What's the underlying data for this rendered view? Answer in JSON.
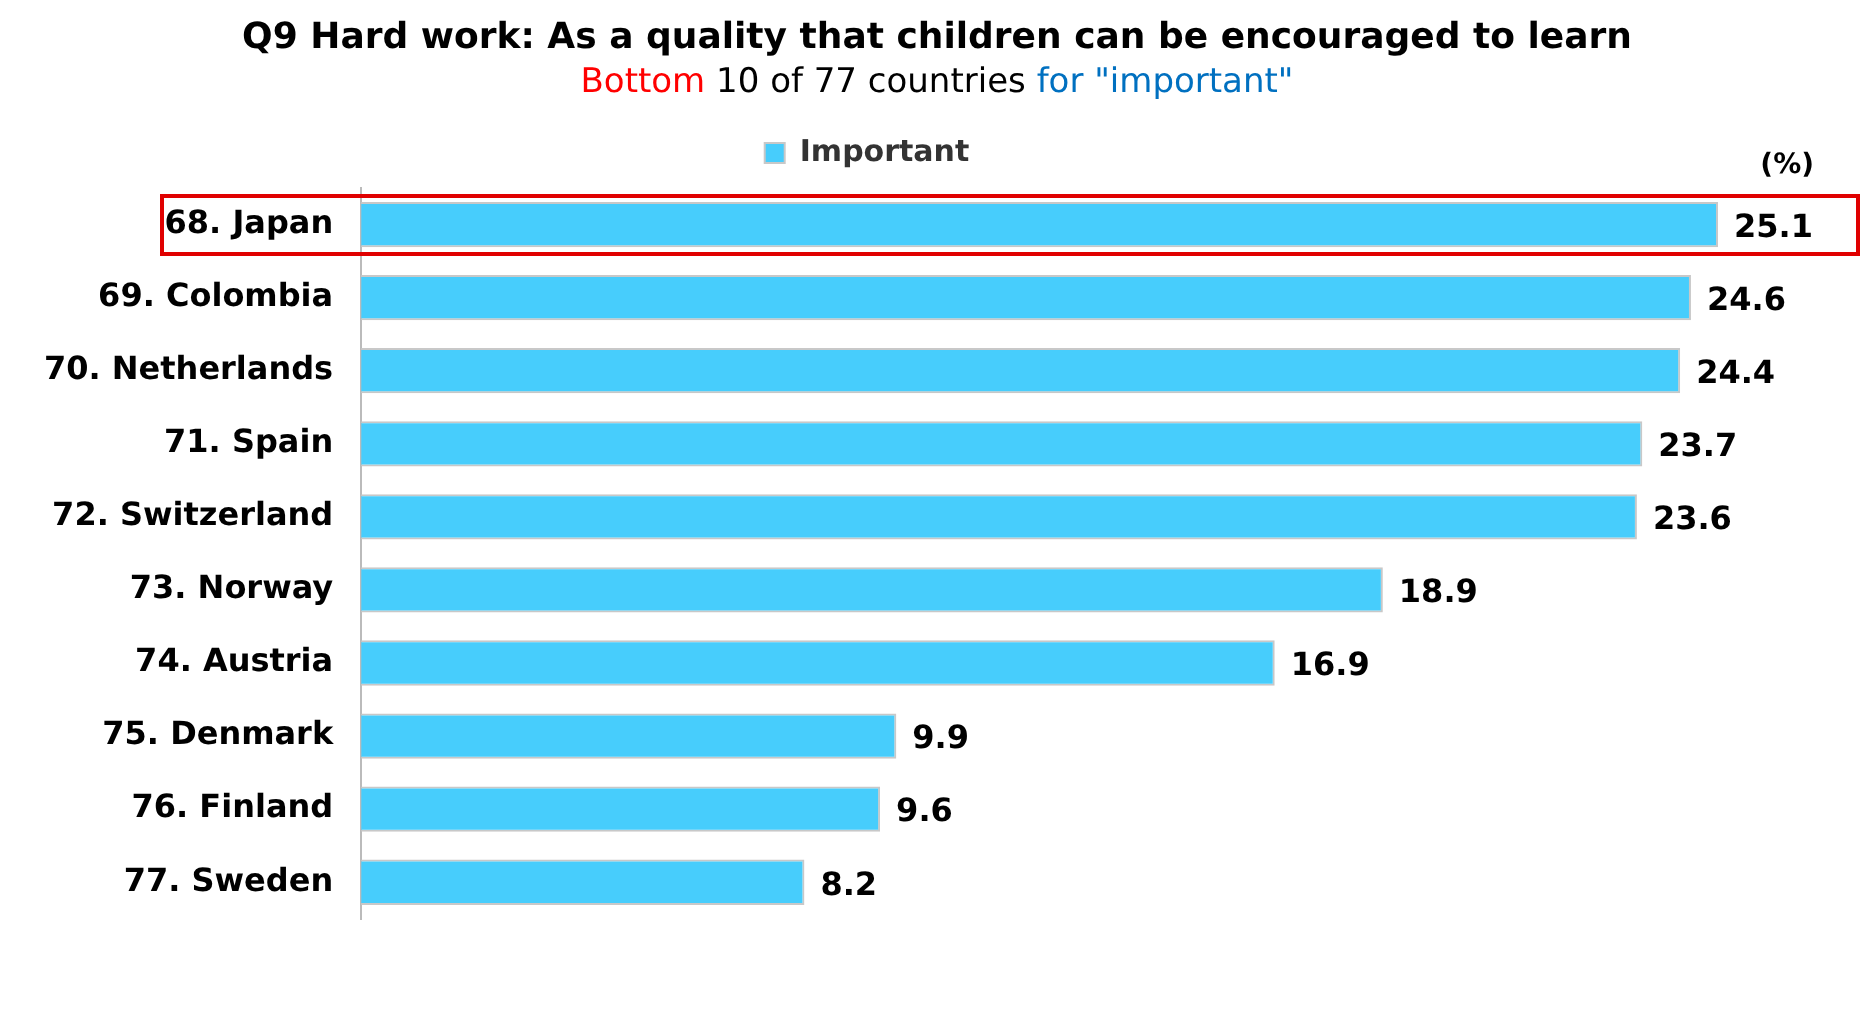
{
  "chart_data": {
    "type": "bar",
    "orientation": "horizontal",
    "title": "Q9 Hard work: As a quality that children can be encouraged to learn",
    "subtitle": "Bottom 10 of 77 countries for \"important\"",
    "categories": [
      "68. Japan",
      "69. Colombia",
      "70. Netherlands",
      "71. Spain",
      "72. Switzerland",
      "73. Norway",
      "74. Austria",
      "75. Denmark",
      "76. Finland",
      "77. Sweden"
    ],
    "series": [
      {
        "name": "Important",
        "color": "#47cdfc",
        "values": [
          25.1,
          24.6,
          24.4,
          23.7,
          23.6,
          18.9,
          16.9,
          9.9,
          9.6,
          8.2
        ]
      }
    ],
    "data_labels": true,
    "legend": "top",
    "grid": false,
    "annotations": [
      "(%)"
    ]
  }
}
